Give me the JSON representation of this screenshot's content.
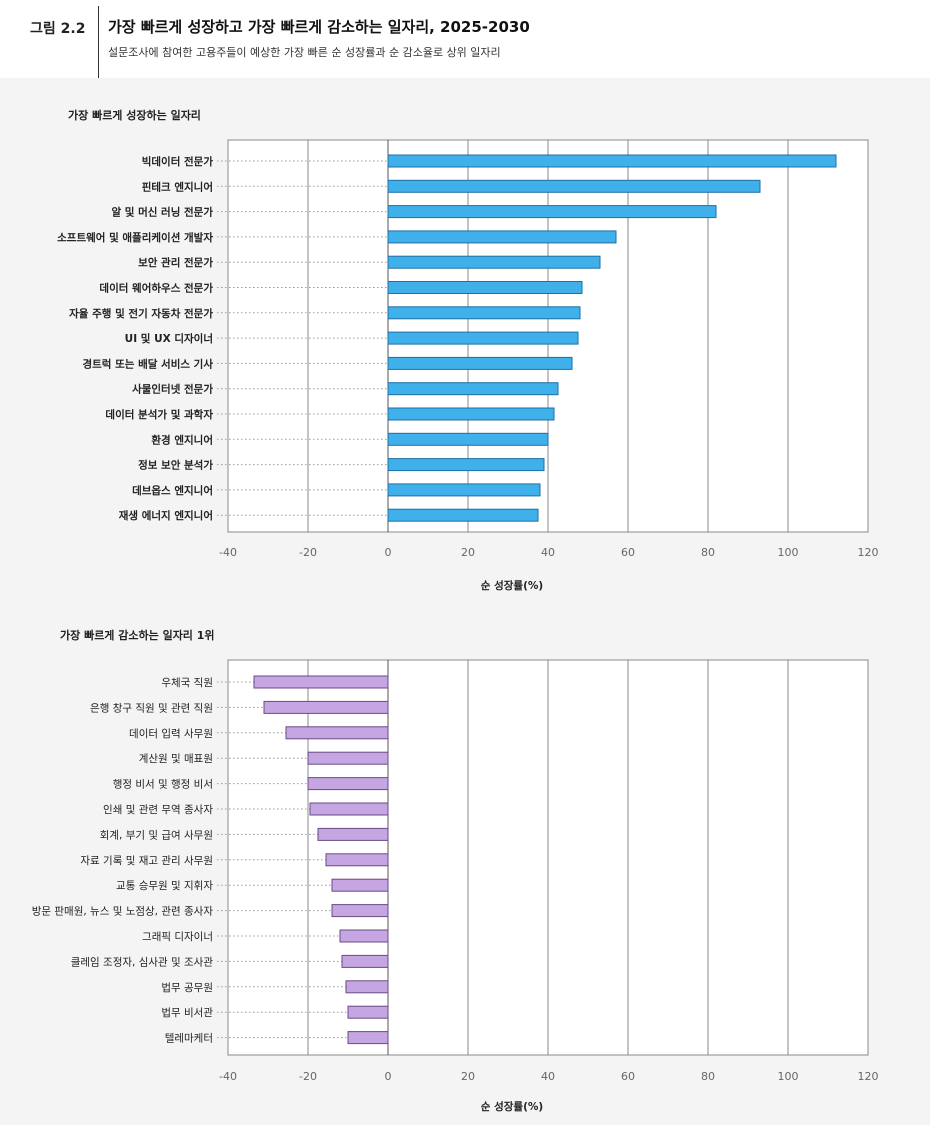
{
  "figure": {
    "label": "그림 2.2",
    "title": "가장 빠르게 성장하고 가장 빠르게 감소하는 일자리, 2025-2030",
    "subtitle": "설문조사에 참여한 고용주들이 예상한 가장 빠른 순 성장률과 순 감소율로 상위 일자리"
  },
  "colors": {
    "growth_bar": "#3fb0e9",
    "growth_bar_border": "#1f6fa8",
    "decline_bar": "#c6a6e2",
    "decline_bar_border": "#6a4b86",
    "panel_bg": "#f4f4f4",
    "plot_bg": "#ffffff"
  },
  "chart_data": [
    {
      "type": "bar",
      "orientation": "horizontal",
      "title": "가장 빠르게 성장하는 일자리",
      "xlabel": "순 성장률(%)",
      "xlim": [
        -40,
        120
      ],
      "xticks": [
        -40,
        -20,
        0,
        20,
        40,
        60,
        80,
        100,
        120
      ],
      "grid": true,
      "categories": [
        "빅데이터 전문가",
        "핀테크 엔지니어",
        "알 및 머신 러닝 전문가",
        "소프트웨어 및 애플리케이션 개발자",
        "보안 관리 전문가",
        "데이터 웨어하우스 전문가",
        "자율 주행 및 전기 자동차 전문가",
        "UI 및 UX 디자이너",
        "경트럭 또는 배달 서비스 기사",
        "사물인터넷 전문가",
        "데이터 분석가 및 과학자",
        "환경 엔지니어",
        "정보 보안 분석가",
        "데브옵스 엔지니어",
        "재생 에너지 엔지니어"
      ],
      "values": [
        112,
        93,
        82,
        57,
        53,
        48.5,
        48,
        47.5,
        46,
        42.5,
        41.5,
        40,
        39,
        38,
        37.5
      ]
    },
    {
      "type": "bar",
      "orientation": "horizontal",
      "title": "가장 빠르게 감소하는 일자리 1위",
      "xlabel": "순 성장률(%)",
      "xlim": [
        -40,
        120
      ],
      "xticks": [
        -40,
        -20,
        0,
        20,
        40,
        60,
        80,
        100,
        120
      ],
      "grid": true,
      "categories": [
        "우체국 직원",
        "은행 창구 직원 및 관련 직원",
        "데이터 입력 사무원",
        "계산원 및 매표원",
        "행정 비서 및 행정 비서",
        "인쇄 및 관련 무역 종사자",
        "회계, 부기 및 급여 사무원",
        "자료 기록 및 재고 관리 사무원",
        "교통 승무원 및 지휘자",
        "방문 판매원, 뉴스 및 노점상, 관련 종사자",
        "그래픽 디자이너",
        "클레임 조정자, 심사관 및 조사관",
        "법무 공무원",
        "법무 비서관",
        "텔레마케터"
      ],
      "values": [
        -33.5,
        -31,
        -25.5,
        -20,
        -20,
        -19.5,
        -17.5,
        -15.5,
        -14,
        -14,
        -12,
        -11.5,
        -10.5,
        -10,
        -10
      ]
    }
  ]
}
